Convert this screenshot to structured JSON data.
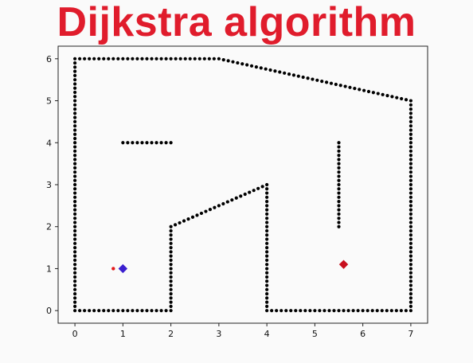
{
  "title": "Dijkstra algorithm",
  "colors": {
    "title": "#e01c2c",
    "obstacle": "#000000",
    "start": "#3b1fcf",
    "goal": "#c8101e",
    "path_point": "#e31a1c"
  },
  "chart_data": {
    "type": "scatter",
    "title": "",
    "xlabel": "",
    "ylabel": "",
    "xlim": [
      -0.35,
      7.35
    ],
    "ylim": [
      -0.3,
      6.3
    ],
    "x_ticks": [
      0,
      1,
      2,
      3,
      4,
      5,
      6,
      7
    ],
    "y_ticks": [
      0,
      1,
      2,
      3,
      4,
      5,
      6
    ],
    "grid": false,
    "obstacle_walls": [
      [
        [
          0,
          0
        ],
        [
          2,
          0
        ]
      ],
      [
        [
          2,
          0
        ],
        [
          2,
          2
        ]
      ],
      [
        [
          2,
          2
        ],
        [
          4,
          3
        ]
      ],
      [
        [
          4,
          3
        ],
        [
          4,
          0
        ]
      ],
      [
        [
          4,
          0
        ],
        [
          7,
          0
        ]
      ],
      [
        [
          7,
          0
        ],
        [
          7,
          5
        ]
      ],
      [
        [
          7,
          5
        ],
        [
          3,
          6
        ]
      ],
      [
        [
          3,
          6
        ],
        [
          0,
          6
        ]
      ],
      [
        [
          0,
          6
        ],
        [
          0,
          0
        ]
      ],
      [
        [
          1,
          4
        ],
        [
          2,
          4
        ]
      ],
      [
        [
          5.5,
          4
        ],
        [
          5.5,
          2
        ]
      ]
    ],
    "obstacle_spacing": 0.1,
    "start": {
      "x": 1.0,
      "y": 1.0
    },
    "goal": {
      "x": 5.6,
      "y": 1.1
    },
    "path_points": [
      {
        "x": 0.8,
        "y": 1.0
      }
    ]
  }
}
